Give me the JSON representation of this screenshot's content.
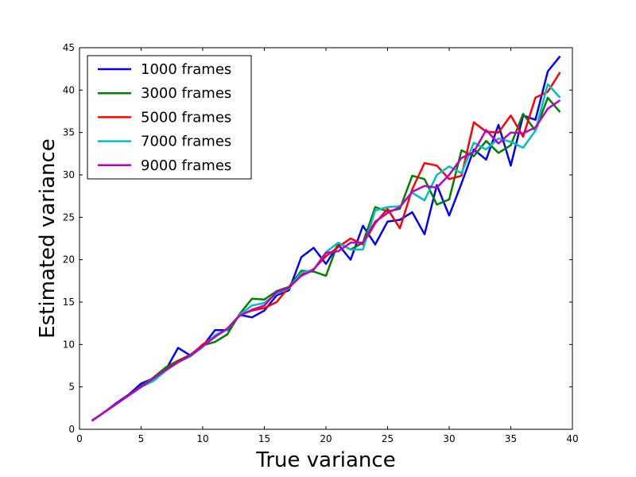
{
  "chart_data": {
    "type": "line",
    "title": "",
    "xlabel": "True variance",
    "ylabel": "Estimated variance",
    "xlim": [
      0,
      40
    ],
    "ylim": [
      0,
      45
    ],
    "xticks": [
      0,
      5,
      10,
      15,
      20,
      25,
      30,
      35,
      40
    ],
    "yticks": [
      0,
      5,
      10,
      15,
      20,
      25,
      30,
      35,
      40,
      45
    ],
    "grid": false,
    "legend_position": "top-left",
    "x": [
      1,
      2,
      3,
      4,
      5,
      6,
      7,
      8,
      9,
      10,
      11,
      12,
      13,
      14,
      15,
      16,
      17,
      18,
      19,
      20,
      21,
      22,
      23,
      24,
      25,
      26,
      27,
      28,
      29,
      30,
      31,
      32,
      33,
      34,
      35,
      36,
      37,
      38,
      39
    ],
    "series": [
      {
        "name": "1000 frames",
        "color": "#0000ff",
        "values": [
          1.0,
          2.0,
          3.1,
          4.1,
          5.4,
          6.0,
          7.0,
          9.6,
          8.7,
          9.8,
          11.7,
          11.7,
          13.5,
          13.2,
          14.0,
          15.8,
          16.4,
          20.3,
          21.4,
          19.5,
          21.8,
          20.0,
          24.0,
          21.8,
          24.5,
          24.7,
          25.6,
          23.0,
          28.8,
          25.2,
          29.0,
          33.0,
          31.8,
          35.9,
          31.1,
          37.0,
          36.5,
          42.2,
          44.0
        ]
      },
      {
        "name": "3000 frames",
        "color": "#008000",
        "values": [
          1.0,
          2.0,
          3.0,
          4.0,
          5.1,
          6.1,
          7.3,
          8.1,
          8.8,
          9.9,
          10.3,
          11.2,
          13.6,
          15.4,
          15.3,
          16.3,
          16.8,
          18.7,
          18.6,
          18.1,
          22.0,
          21.2,
          22.0,
          26.2,
          25.7,
          26.0,
          29.9,
          29.5,
          26.5,
          27.1,
          32.9,
          32.2,
          34.0,
          32.6,
          33.5,
          37.2,
          35.2,
          39.1,
          37.4
        ]
      },
      {
        "name": "5000 frames",
        "color": "#ff0000",
        "values": [
          1.0,
          2.0,
          3.0,
          4.0,
          5.0,
          6.0,
          7.0,
          8.0,
          8.7,
          10.0,
          11.0,
          11.8,
          13.5,
          14.0,
          14.3,
          15.0,
          16.8,
          18.2,
          18.9,
          20.4,
          21.5,
          22.5,
          21.8,
          24.3,
          26.0,
          23.7,
          28.3,
          31.4,
          31.1,
          29.5,
          29.9,
          36.2,
          35.1,
          35.0,
          37.0,
          34.5,
          39.1,
          39.8,
          42.1
        ]
      },
      {
        "name": "7000 frames",
        "color": "#00bfbf",
        "values": [
          1.0,
          2.0,
          3.0,
          4.0,
          5.0,
          5.7,
          6.9,
          7.9,
          8.6,
          9.7,
          11.1,
          11.8,
          13.5,
          14.6,
          14.9,
          16.0,
          16.6,
          18.5,
          18.8,
          20.9,
          22.0,
          21.2,
          21.2,
          25.8,
          26.2,
          26.3,
          27.9,
          27.0,
          30.0,
          31.0,
          30.2,
          33.8,
          33.0,
          34.3,
          33.9,
          33.2,
          35.2,
          40.7,
          39.1
        ]
      },
      {
        "name": "9000 frames",
        "color": "#bf00bf",
        "values": [
          1.0,
          2.0,
          3.0,
          4.0,
          5.0,
          6.0,
          7.0,
          7.9,
          8.7,
          9.8,
          10.9,
          11.9,
          13.4,
          14.1,
          14.6,
          16.2,
          16.7,
          18.1,
          18.8,
          20.8,
          21.0,
          22.0,
          22.0,
          24.5,
          25.5,
          26.2,
          28.0,
          28.7,
          28.5,
          30.0,
          32.0,
          32.7,
          35.3,
          33.7,
          35.0,
          34.9,
          35.6,
          37.8,
          38.8
        ]
      }
    ]
  }
}
